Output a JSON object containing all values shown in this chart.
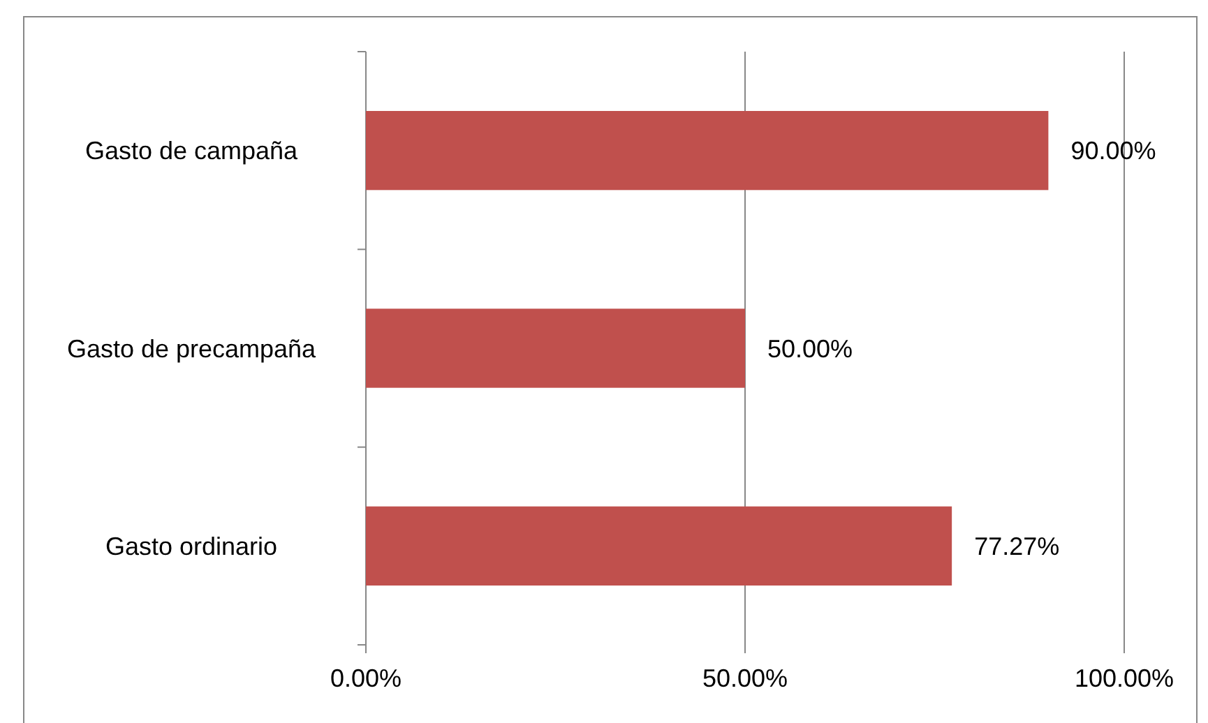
{
  "chart_data": {
    "type": "bar",
    "orientation": "horizontal",
    "categories": [
      "Gasto de campaña",
      "Gasto de precampaña",
      "Gasto ordinario"
    ],
    "values": [
      90,
      50,
      77.27
    ],
    "value_labels": [
      "90.00%",
      "50.00%",
      "77.27%"
    ],
    "color": "#c0504d",
    "xlim": [
      0,
      100
    ],
    "xticks": [
      {
        "value": 0,
        "label": "0.00%"
      },
      {
        "value": 50,
        "label": "50.00%"
      },
      {
        "value": 100,
        "label": "100.00%"
      }
    ],
    "grid": "x"
  }
}
